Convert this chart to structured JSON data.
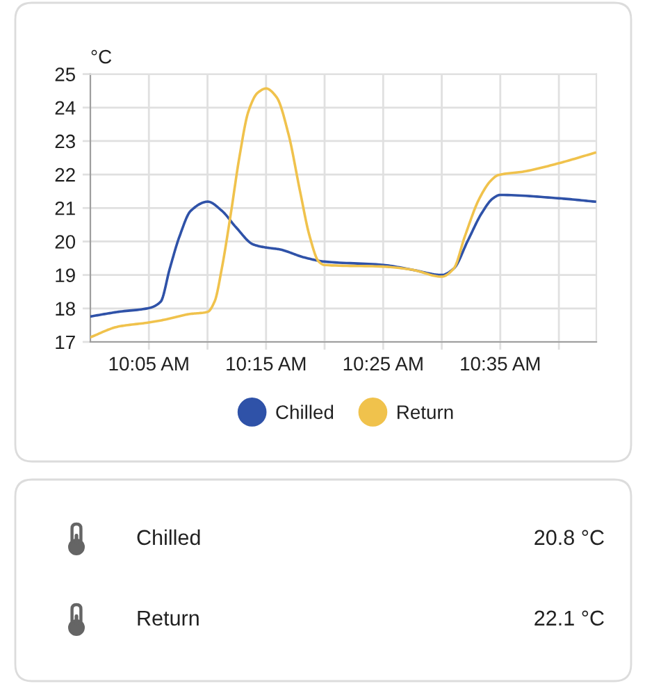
{
  "chart_data": [
    {
      "type": "line",
      "ylabel": "°C",
      "xlim": [
        10.0,
        10.72
      ],
      "xticks": [
        {
          "value": 10.0833,
          "label": "10:05 AM"
        },
        {
          "value": 10.1667,
          "label": null
        },
        {
          "value": 10.25,
          "label": "10:15 AM"
        },
        {
          "value": 10.3333,
          "label": null
        },
        {
          "value": 10.4167,
          "label": "10:25 AM"
        },
        {
          "value": 10.5,
          "label": null
        },
        {
          "value": 10.5833,
          "label": "10:35 AM"
        },
        {
          "value": 10.6667,
          "label": null
        }
      ],
      "ylim": [
        17,
        25
      ],
      "yticks": [
        17,
        18,
        19,
        20,
        21,
        22,
        23,
        24,
        25
      ],
      "grid": true,
      "legend": "bottom",
      "series": [
        {
          "name": "Chilled",
          "color": "#2f52a8",
          "x": [
            10.0,
            10.04,
            10.083,
            10.1,
            10.113,
            10.127,
            10.143,
            10.167,
            10.187,
            10.207,
            10.232,
            10.25,
            10.268,
            10.305,
            10.333,
            10.417,
            10.457,
            10.5,
            10.517,
            10.537,
            10.557,
            10.573,
            10.583,
            10.667,
            10.718
          ],
          "values": [
            17.76,
            17.9,
            18.01,
            18.2,
            19.19,
            20.16,
            20.92,
            21.19,
            20.92,
            20.43,
            19.91,
            19.82,
            19.77,
            19.52,
            19.4,
            19.3,
            19.16,
            19.0,
            19.19,
            20.02,
            20.85,
            21.29,
            21.39,
            21.29,
            21.19
          ]
        },
        {
          "name": "Return",
          "color": "#f0c24c",
          "x": [
            10.0,
            10.04,
            10.083,
            10.107,
            10.14,
            10.167,
            10.177,
            10.187,
            10.2,
            10.212,
            10.225,
            10.238,
            10.25,
            10.265,
            10.282,
            10.298,
            10.312,
            10.325,
            10.333,
            10.417,
            10.457,
            10.5,
            10.517,
            10.533,
            10.553,
            10.57,
            10.58,
            10.617,
            10.667,
            10.718
          ],
          "values": [
            17.14,
            17.46,
            17.58,
            17.67,
            17.83,
            17.9,
            18.22,
            19.19,
            20.85,
            22.51,
            23.89,
            24.44,
            24.57,
            24.31,
            23.2,
            21.54,
            20.16,
            19.4,
            19.3,
            19.25,
            19.16,
            18.95,
            19.19,
            20.16,
            21.26,
            21.82,
            21.98,
            22.09,
            22.34,
            22.65
          ]
        }
      ]
    },
    {
      "type": "other",
      "annotations": [
        "Chilled",
        "20.8 °C",
        "Return",
        "22.1 °C"
      ]
    }
  ]
}
